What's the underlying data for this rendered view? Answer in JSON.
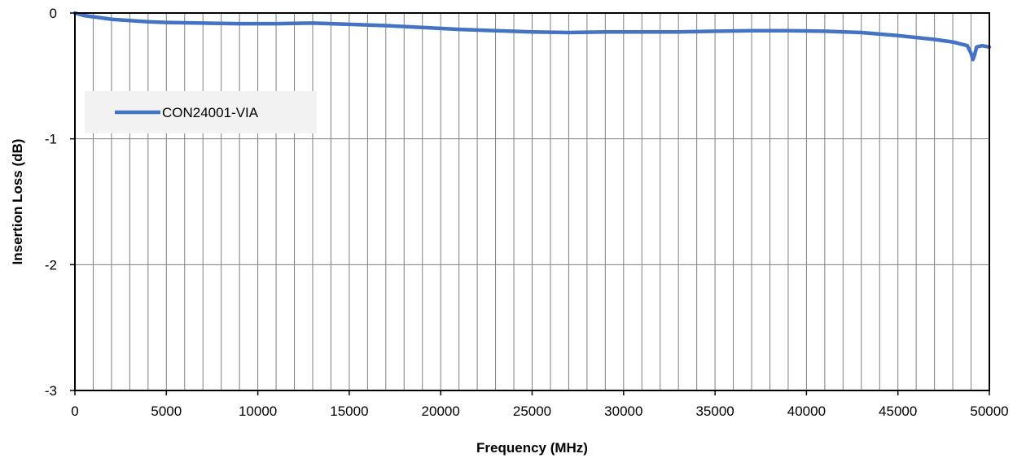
{
  "chart_data": {
    "type": "line",
    "xlabel": "Frequency (MHz)",
    "ylabel": "Insertion Loss (dB)",
    "xlim": [
      0,
      50000
    ],
    "ylim": [
      -3,
      0
    ],
    "x_ticks": [
      0,
      5000,
      10000,
      15000,
      20000,
      25000,
      30000,
      35000,
      40000,
      45000,
      50000
    ],
    "x_tick_labels": [
      "0",
      "5000",
      "10000",
      "15000",
      "20000",
      "25000",
      "30000",
      "35000",
      "40000",
      "45000",
      "50000"
    ],
    "y_ticks": [
      0,
      -1,
      -2,
      -3
    ],
    "y_tick_labels": [
      "0",
      "-1",
      "-2",
      "-3"
    ],
    "x_minor_gridline_step": 1000,
    "grid": true,
    "legend_position": "upper-left inside plot",
    "colors": {
      "series": "#4472C4",
      "grid": "#7f7f7f",
      "axis": "#000000",
      "legend_bg": "#f2f2f2"
    },
    "series": [
      {
        "name": "CON24001-VIA",
        "x": [
          0,
          500,
          1000,
          2000,
          3000,
          4000,
          5000,
          7000,
          9000,
          11000,
          13000,
          15000,
          17000,
          19000,
          21000,
          23000,
          25000,
          27000,
          29000,
          31000,
          33000,
          35000,
          37000,
          39000,
          41000,
          43000,
          45000,
          47000,
          48000,
          48800,
          49000,
          49100,
          49200,
          49300,
          49600,
          50000
        ],
        "y": [
          0.0,
          -0.02,
          -0.03,
          -0.05,
          -0.06,
          -0.07,
          -0.075,
          -0.08,
          -0.085,
          -0.085,
          -0.08,
          -0.09,
          -0.1,
          -0.115,
          -0.13,
          -0.14,
          -0.15,
          -0.155,
          -0.15,
          -0.15,
          -0.15,
          -0.145,
          -0.14,
          -0.14,
          -0.145,
          -0.155,
          -0.18,
          -0.21,
          -0.23,
          -0.26,
          -0.32,
          -0.37,
          -0.33,
          -0.27,
          -0.26,
          -0.27
        ]
      }
    ]
  }
}
